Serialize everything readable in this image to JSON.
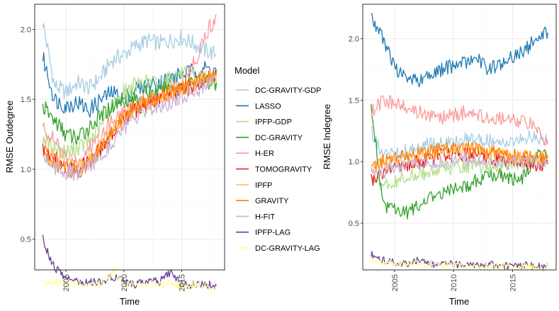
{
  "chart_data": [
    {
      "type": "line",
      "panel": "left",
      "xlabel": "Time",
      "ylabel": "RMSE Outdegree",
      "xlim": [
        2002.3,
        2018.7
      ],
      "ylim": [
        0.28,
        2.18
      ],
      "xticks": [
        2005,
        2010,
        2015
      ],
      "xtick_labels": [
        "2005",
        "2010",
        "2015"
      ],
      "yticks": [
        0.5,
        1.0,
        1.5,
        2.0
      ],
      "ytick_labels": [
        "0.5",
        "1.0",
        "1.5",
        "2.0"
      ],
      "grid": true,
      "x": [
        2003,
        2004,
        2005,
        2006,
        2007,
        2008,
        2009,
        2010,
        2011,
        2012,
        2013,
        2014,
        2015,
        2016,
        2017,
        2018
      ],
      "series": [
        {
          "name": "DC-GRAVITY-GDP",
          "values": [
            2.05,
            1.6,
            1.55,
            1.62,
            1.58,
            1.66,
            1.78,
            1.82,
            1.88,
            1.92,
            1.9,
            1.92,
            1.94,
            1.9,
            1.85,
            1.82
          ]
        },
        {
          "name": "LASSO",
          "values": [
            1.8,
            1.5,
            1.45,
            1.48,
            1.42,
            1.5,
            1.55,
            1.5,
            1.58,
            1.6,
            1.62,
            1.65,
            1.68,
            1.7,
            1.72,
            1.7
          ]
        },
        {
          "name": "IPFP-GDP",
          "values": [
            1.22,
            1.15,
            1.12,
            1.15,
            1.2,
            1.3,
            1.45,
            1.55,
            1.6,
            1.62,
            1.62,
            1.65,
            1.68,
            1.66,
            1.64,
            1.63
          ]
        },
        {
          "name": "DC-GRAVITY",
          "values": [
            1.45,
            1.35,
            1.25,
            1.22,
            1.3,
            1.38,
            1.45,
            1.5,
            1.5,
            1.55,
            1.55,
            1.58,
            1.6,
            1.62,
            1.63,
            1.62
          ]
        },
        {
          "name": "H-ER",
          "values": [
            1.3,
            1.2,
            1.08,
            1.05,
            1.15,
            1.25,
            1.35,
            1.42,
            1.45,
            1.5,
            1.52,
            1.55,
            1.6,
            1.75,
            1.95,
            2.1
          ]
        },
        {
          "name": "TOMOGRAVITY",
          "values": [
            1.15,
            1.08,
            1.02,
            1.0,
            1.05,
            1.15,
            1.25,
            1.35,
            1.42,
            1.46,
            1.5,
            1.53,
            1.56,
            1.6,
            1.64,
            1.67
          ]
        },
        {
          "name": "IPFP",
          "values": [
            1.18,
            1.1,
            1.03,
            1.0,
            1.06,
            1.16,
            1.27,
            1.36,
            1.43,
            1.47,
            1.51,
            1.54,
            1.57,
            1.61,
            1.65,
            1.68
          ]
        },
        {
          "name": "GRAVITY",
          "values": [
            1.12,
            1.05,
            1.0,
            0.98,
            1.05,
            1.15,
            1.28,
            1.38,
            1.45,
            1.48,
            1.52,
            1.55,
            1.58,
            1.62,
            1.66,
            1.7
          ]
        },
        {
          "name": "H-FIT",
          "values": [
            1.1,
            1.02,
            0.98,
            0.96,
            1.02,
            1.1,
            1.2,
            1.3,
            1.36,
            1.4,
            1.45,
            1.48,
            1.52,
            1.56,
            1.6,
            1.64
          ]
        },
        {
          "name": "IPFP-LAG",
          "values": [
            0.48,
            0.3,
            0.22,
            0.2,
            0.19,
            0.2,
            0.23,
            0.2,
            0.18,
            0.21,
            0.19,
            0.26,
            0.18,
            0.17,
            0.18,
            0.17
          ]
        },
        {
          "name": "DC-GRAVITY-LAG",
          "values": [
            0.2,
            0.19,
            0.18,
            0.18,
            0.17,
            0.18,
            0.27,
            0.18,
            0.17,
            0.19,
            0.17,
            0.18,
            0.16,
            0.17,
            0.16,
            0.16
          ]
        }
      ]
    },
    {
      "type": "line",
      "panel": "right",
      "xlabel": "Time",
      "ylabel": "RMSE Indegree",
      "xlim": [
        2002.3,
        2018.7
      ],
      "ylim": [
        0.12,
        2.28
      ],
      "xticks": [
        2005,
        2010,
        2015
      ],
      "xtick_labels": [
        "2005",
        "2010",
        "2015"
      ],
      "yticks": [
        0.5,
        1.0,
        1.5,
        2.0
      ],
      "ytick_labels": [
        "0.5",
        "1.0",
        "1.5",
        "2.0"
      ],
      "grid": true,
      "x": [
        2003,
        2004,
        2005,
        2006,
        2007,
        2008,
        2009,
        2010,
        2011,
        2012,
        2013,
        2014,
        2015,
        2016,
        2017,
        2018
      ],
      "series": [
        {
          "name": "DC-GRAVITY-GDP",
          "values": [
            1.25,
            1.05,
            1.05,
            1.1,
            1.12,
            1.15,
            1.15,
            1.15,
            1.18,
            1.18,
            1.17,
            1.17,
            1.18,
            1.2,
            1.2,
            1.18
          ]
        },
        {
          "name": "LASSO",
          "values": [
            2.2,
            2.0,
            1.75,
            1.7,
            1.65,
            1.7,
            1.75,
            1.78,
            1.8,
            1.85,
            1.75,
            1.8,
            1.85,
            1.9,
            2.0,
            2.05
          ]
        },
        {
          "name": "IPFP-GDP",
          "values": [
            0.85,
            0.82,
            0.83,
            0.87,
            0.9,
            0.92,
            0.95,
            0.95,
            0.97,
            0.96,
            0.95,
            0.96,
            0.98,
            0.99,
            1.0,
            1.01
          ]
        },
        {
          "name": "DC-GRAVITY",
          "values": [
            1.48,
            0.65,
            0.6,
            0.58,
            0.65,
            0.7,
            0.75,
            0.78,
            0.8,
            0.85,
            0.88,
            0.9,
            0.85,
            0.88,
            1.05,
            1.05
          ]
        },
        {
          "name": "H-ER",
          "values": [
            1.4,
            1.5,
            1.48,
            1.45,
            1.4,
            1.38,
            1.35,
            1.38,
            1.4,
            1.38,
            1.36,
            1.35,
            1.34,
            1.32,
            1.3,
            1.15
          ]
        },
        {
          "name": "TOMOGRAVITY",
          "values": [
            0.85,
            0.9,
            0.95,
            0.98,
            1.0,
            1.02,
            1.05,
            1.05,
            1.06,
            1.05,
            1.04,
            1.02,
            1.0,
            1.0,
            0.98,
            0.98
          ]
        },
        {
          "name": "IPFP",
          "values": [
            0.96,
            0.98,
            1.0,
            1.03,
            1.05,
            1.07,
            1.08,
            1.1,
            1.1,
            1.09,
            1.07,
            1.05,
            1.04,
            1.03,
            1.02,
            1.03
          ]
        },
        {
          "name": "GRAVITY",
          "values": [
            0.95,
            1.0,
            1.02,
            1.05,
            1.07,
            1.08,
            1.1,
            1.12,
            1.12,
            1.1,
            1.08,
            1.06,
            1.05,
            1.04,
            1.03,
            1.04
          ]
        },
        {
          "name": "H-FIT",
          "values": [
            0.9,
            0.92,
            0.95,
            0.97,
            0.98,
            0.99,
            1.0,
            1.01,
            1.02,
            1.01,
            1.0,
            0.99,
            0.99,
            0.99,
            0.99,
            1.0
          ]
        },
        {
          "name": "IPFP-LAG",
          "values": [
            0.25,
            0.2,
            0.18,
            0.17,
            0.2,
            0.17,
            0.16,
            0.17,
            0.15,
            0.16,
            0.17,
            0.15,
            0.15,
            0.16,
            0.15,
            0.14
          ]
        },
        {
          "name": "DC-GRAVITY-LAG",
          "values": [
            0.2,
            0.18,
            0.18,
            0.16,
            0.17,
            0.16,
            0.16,
            0.16,
            0.15,
            0.15,
            0.15,
            0.15,
            0.15,
            0.15,
            0.14,
            0.14
          ]
        }
      ]
    }
  ],
  "legend": {
    "title": "Model",
    "placement": "center, between panels",
    "items": [
      {
        "label": "DC-GRAVITY-GDP",
        "color": "#A6CEE3"
      },
      {
        "label": "LASSO",
        "color": "#1F78B4"
      },
      {
        "label": "IPFP-GDP",
        "color": "#B2DF8A"
      },
      {
        "label": "DC-GRAVITY",
        "color": "#33A02C"
      },
      {
        "label": "H-ER",
        "color": "#FB9A99"
      },
      {
        "label": "TOMOGRAVITY",
        "color": "#E31A1C"
      },
      {
        "label": "IPFP",
        "color": "#FDBF6F"
      },
      {
        "label": "GRAVITY",
        "color": "#FF7F00"
      },
      {
        "label": "H-FIT",
        "color": "#CAB2D6"
      },
      {
        "label": "IPFP-LAG",
        "color": "#6A3D9A"
      },
      {
        "label": "DC-GRAVITY-LAG",
        "color": "#FFFF99"
      }
    ]
  }
}
